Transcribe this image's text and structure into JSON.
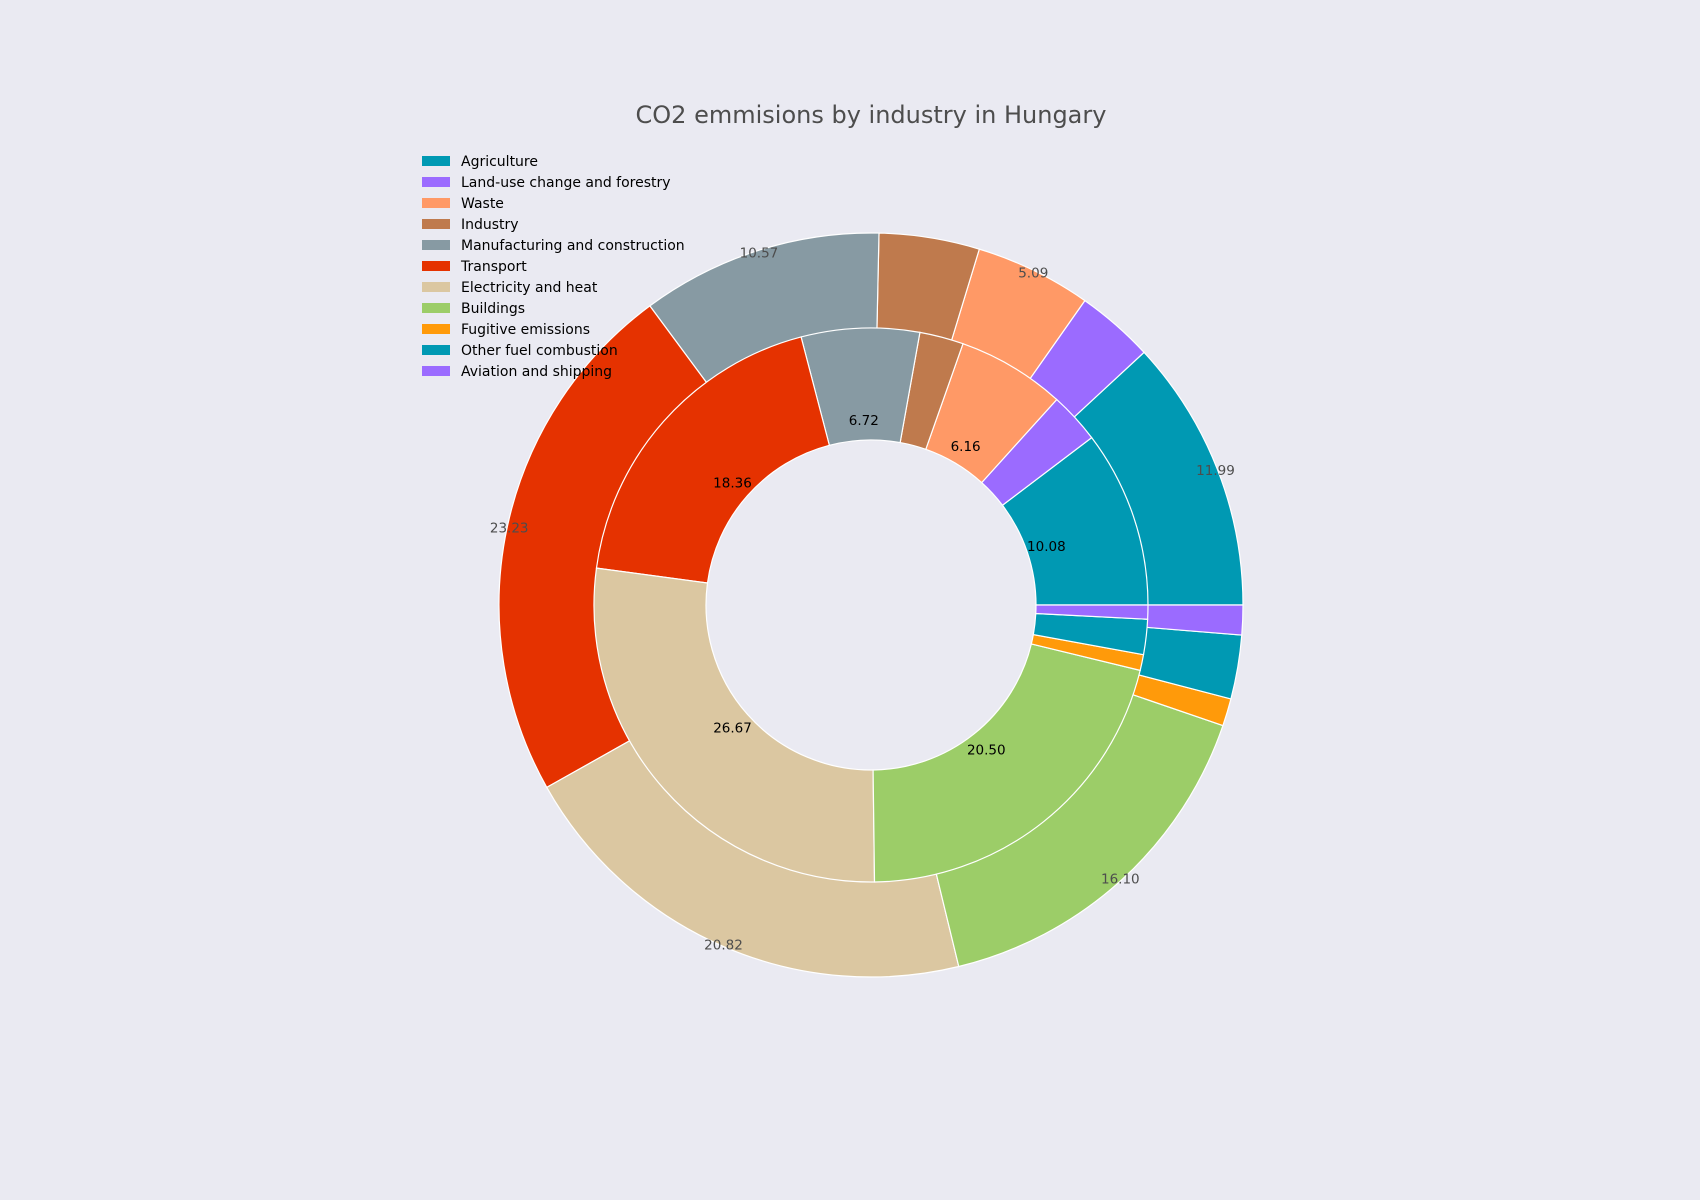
{
  "chart_data": {
    "type": "pie",
    "title": "CO2 emmisions by industry in Hungary",
    "legend_position": "upper-left",
    "legend": [
      {
        "label": "Agriculture",
        "color": "#0099b3"
      },
      {
        "label": "Land-use change and forestry",
        "color": "#9b6bff"
      },
      {
        "label": "Waste",
        "color": "#ff9966"
      },
      {
        "label": "Industry",
        "color": "#bf7a4d"
      },
      {
        "label": "Manufacturing and construction",
        "color": "#879aa3"
      },
      {
        "label": "Transport",
        "color": "#e53200"
      },
      {
        "label": "Electricity and heat",
        "color": "#dbc7a1"
      },
      {
        "label": "Buildings",
        "color": "#9ccd68"
      },
      {
        "label": "Fugitive emissions",
        "color": "#ff9a0a"
      },
      {
        "label": "Other fuel combustion",
        "color": "#0099b3"
      },
      {
        "label": "Aviation and shipping",
        "color": "#9b6bff"
      }
    ],
    "outer_ring": {
      "values": [
        11.99,
        3.4,
        5.09,
        4.4,
        10.57,
        23.23,
        20.82,
        16.1,
        1.2,
        2.8,
        1.3
      ],
      "labels": [
        "11.99",
        "",
        "5.09",
        "",
        "10.57",
        "23.23",
        "20.82",
        "16.10",
        "",
        "",
        ""
      ]
    },
    "inner_ring": {
      "values": [
        10.08,
        2.9,
        6.16,
        2.5,
        6.72,
        18.36,
        26.67,
        20.5,
        0.9,
        2.0,
        0.8
      ],
      "labels": [
        "10.08",
        "",
        "6.16",
        "",
        "6.72",
        "18.36",
        "26.67",
        "20.50",
        "",
        "",
        ""
      ]
    }
  }
}
